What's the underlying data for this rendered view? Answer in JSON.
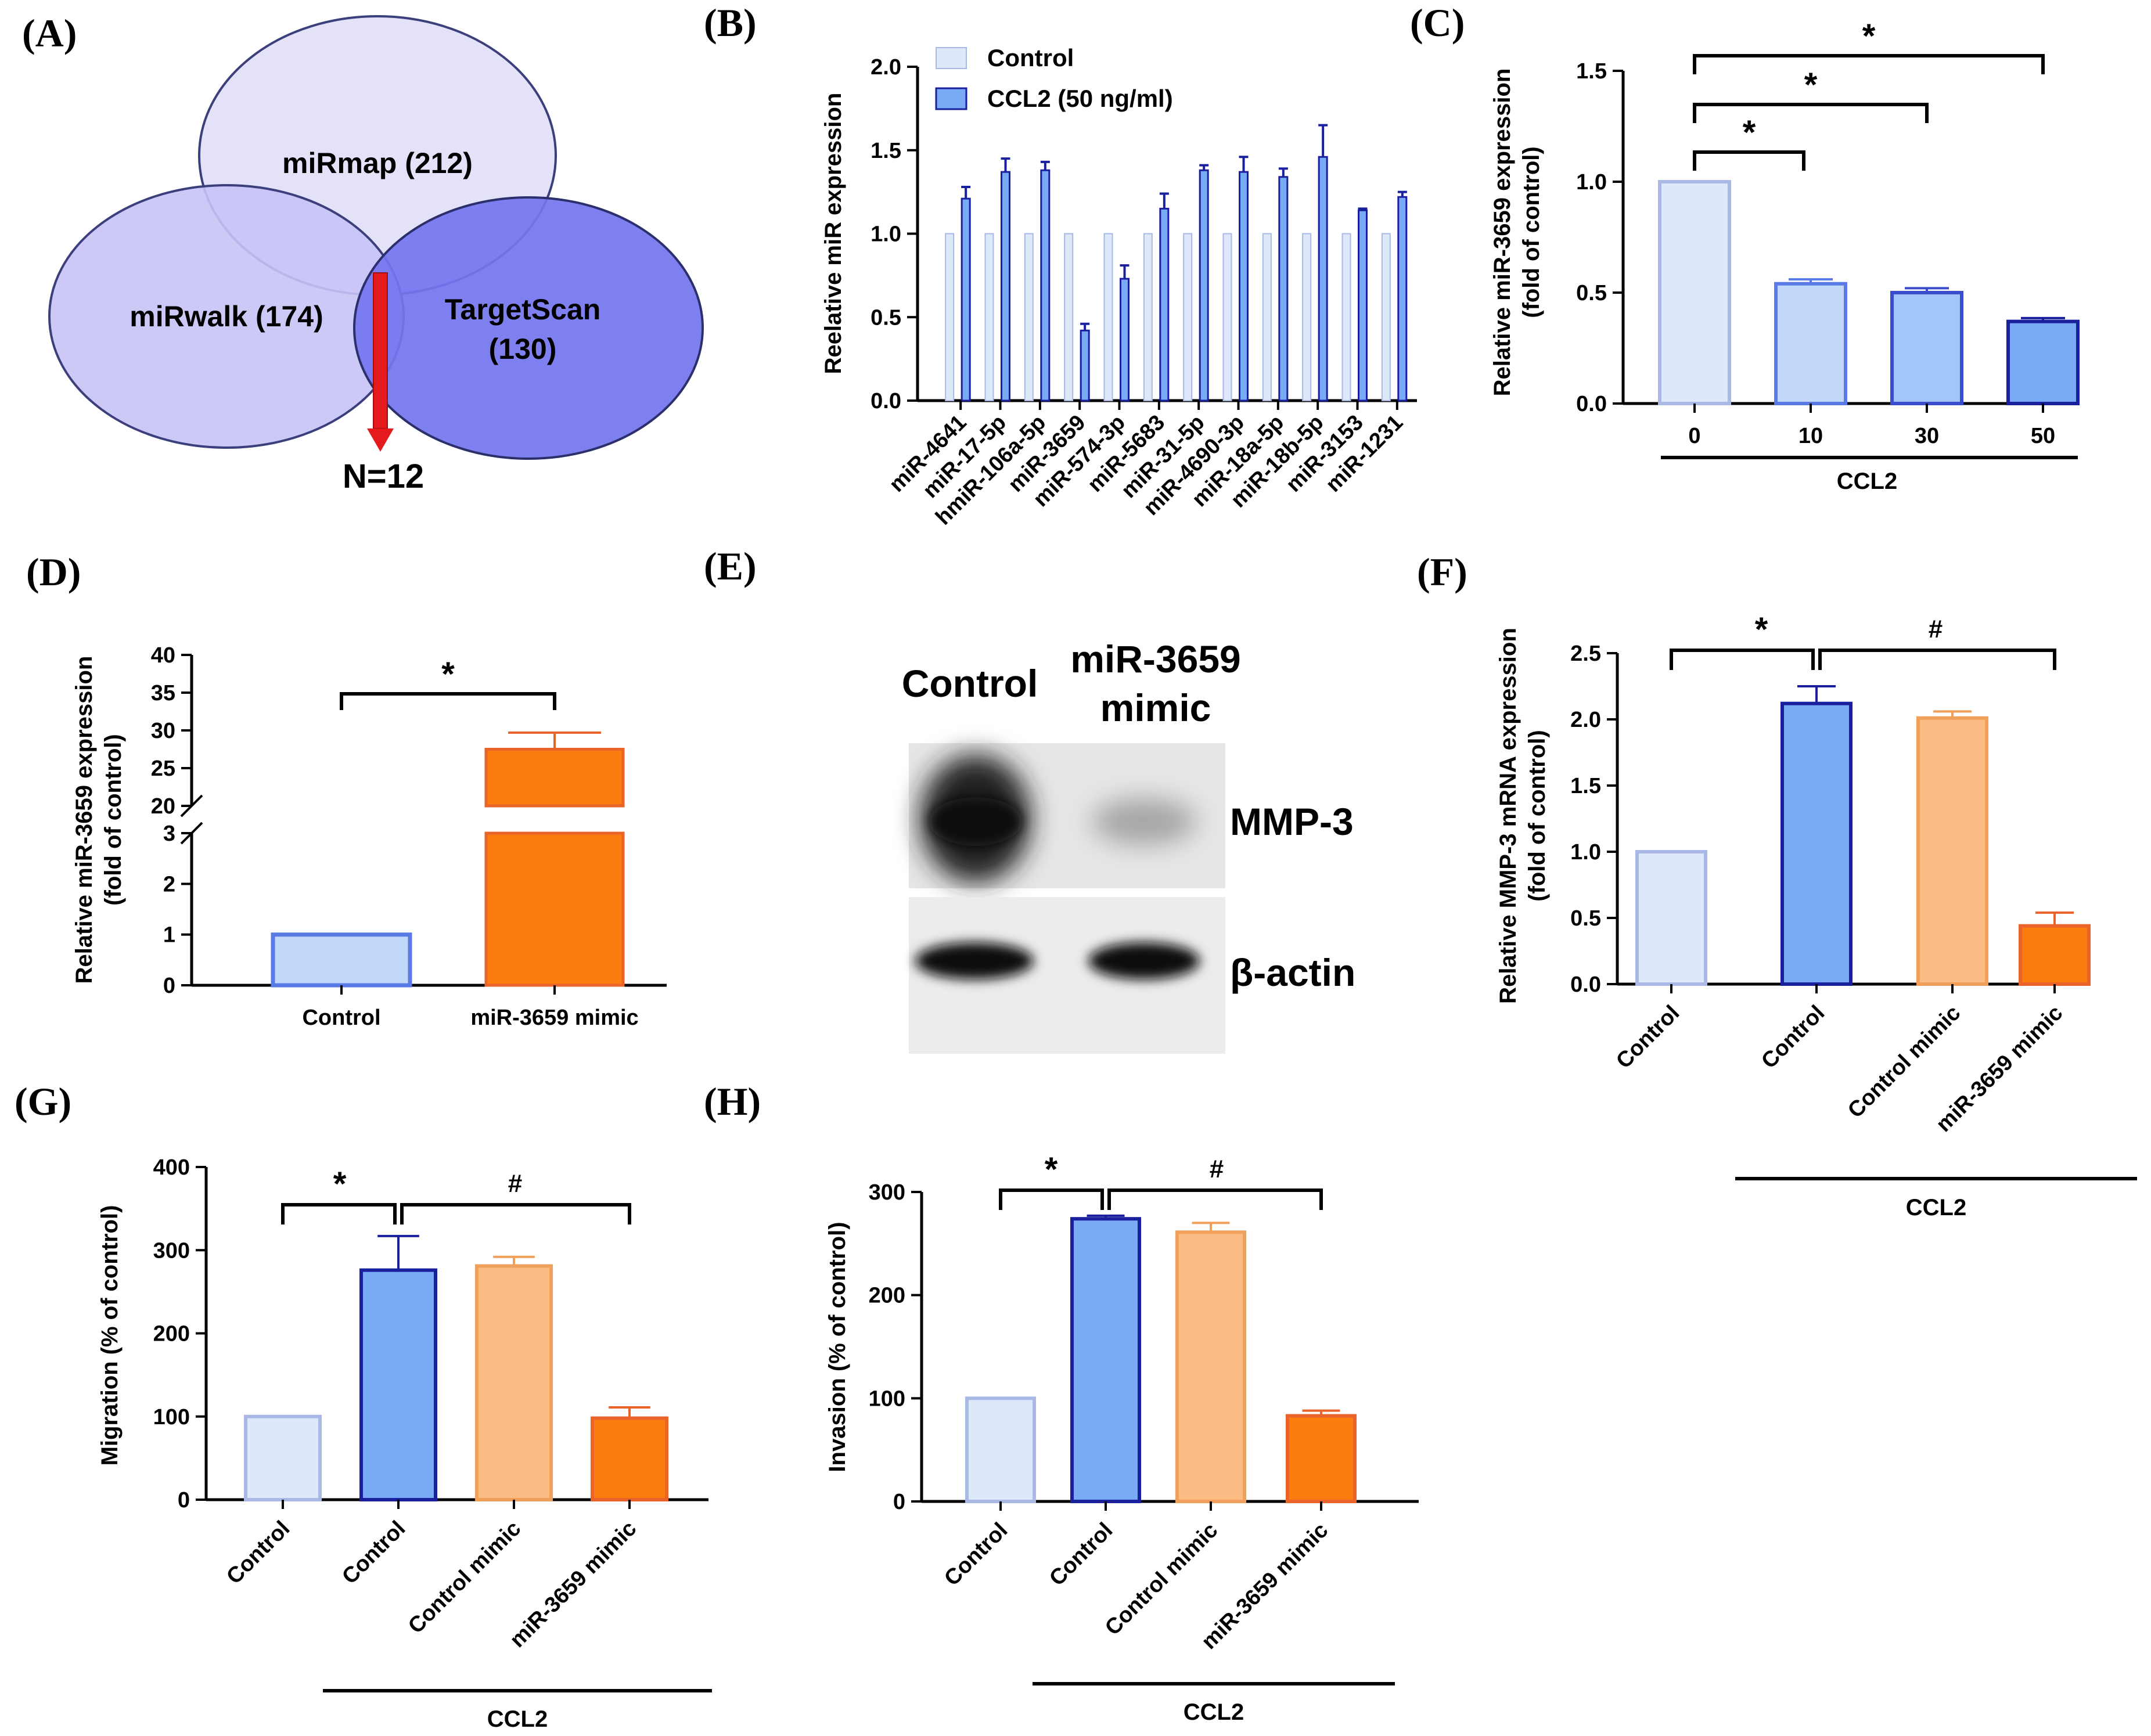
{
  "panel_labels": {
    "A": "(A)",
    "B": "(B)",
    "C": "(C)",
    "D": "(D)",
    "E": "(E)",
    "F": "(F)",
    "G": "(G)",
    "H": "(H)"
  },
  "venn": {
    "sets": [
      {
        "label": "miRmap (212)",
        "color": "#e4e2f8"
      },
      {
        "label": "miRwalk (174)",
        "color": "#c6c3f6"
      },
      {
        "label_line1": "TargetScan",
        "label_line2": "(130)",
        "color": "#7475ee"
      }
    ],
    "result": "N=12",
    "arrow_color": "#e41a1c"
  },
  "colors": {
    "light_fill": "#dde8fa",
    "light_edge": "#aab8e6",
    "blue_fill": "#78aaf5",
    "blue_edge": "#1a1f9e",
    "peach_fill": "#fbbd84",
    "peach_edge": "#f0a05a",
    "orange_fill": "#fb7d10",
    "orange_edge": "#e8642a"
  },
  "chart_data": [
    {
      "id": "B",
      "type": "bar",
      "ylabel": "Reelative miR expression",
      "ylim": [
        0,
        2.0
      ],
      "yticks": [
        "0.0",
        "0.5",
        "1.0",
        "1.5",
        "2.0"
      ],
      "legend_placement": "top-left",
      "categories": [
        "miR-4641",
        "miR-17-5p",
        "hmiR-106a-5p",
        "miR-3659",
        "miR-574-3p",
        "miR-5683",
        "miR-31-5p",
        "miR-4690-3p",
        "miR-18a-5p",
        "miR-18b-5p",
        "miR-3153",
        "miR-1231"
      ],
      "series": [
        {
          "name": "Control",
          "values": [
            1,
            1,
            1,
            1,
            1,
            1,
            1,
            1,
            1,
            1,
            1,
            1
          ],
          "errors": [
            0,
            0,
            0,
            0,
            0,
            0,
            0,
            0,
            0,
            0,
            0,
            0
          ]
        },
        {
          "name": "CCL2 (50 ng/ml)",
          "values": [
            1.21,
            1.37,
            1.38,
            0.42,
            0.73,
            1.15,
            1.38,
            1.37,
            1.34,
            1.46,
            1.14,
            1.22
          ],
          "errors": [
            0.07,
            0.08,
            0.05,
            0.04,
            0.08,
            0.09,
            0.03,
            0.09,
            0.05,
            0.19,
            0.01,
            0.03
          ]
        }
      ]
    },
    {
      "id": "C",
      "type": "bar",
      "ylabel_line1": "Relative miR-3659 expression",
      "ylabel_line2": "(fold of control)",
      "ylim": [
        0,
        1.5
      ],
      "yticks": [
        "0.0",
        "0.5",
        "1.0",
        "1.5"
      ],
      "categories": [
        "0",
        "10",
        "30",
        "50"
      ],
      "group_label": "CCL2",
      "values": [
        1.0,
        0.54,
        0.5,
        0.37
      ],
      "errors": [
        0,
        0.02,
        0.02,
        0.015
      ],
      "significance": [
        "*",
        "*",
        "*"
      ]
    },
    {
      "id": "D",
      "type": "bar",
      "ylabel_line1": "Relative miR-3659 expression",
      "ylabel_line2": "(fold of control)",
      "broken_axis": {
        "lower": [
          0,
          3
        ],
        "upper": [
          20,
          40
        ]
      },
      "yticks_lower": [
        "0",
        "1",
        "2",
        "3"
      ],
      "yticks_upper": [
        "20",
        "25",
        "30",
        "35",
        "40"
      ],
      "categories": [
        "Control",
        "miR-3659 mimic"
      ],
      "values": [
        1.0,
        27.5
      ],
      "errors": [
        0,
        2.2
      ],
      "significance": "*"
    },
    {
      "id": "F",
      "type": "bar",
      "ylabel_line1": "Relative MMP-3 mRNA expression",
      "ylabel_line2": "(fold of control)",
      "ylim": [
        0,
        2.5
      ],
      "yticks": [
        "0.0",
        "0.5",
        "1.0",
        "1.5",
        "2.0",
        "2.5"
      ],
      "categories": [
        "Control",
        "Control",
        "Control mimic",
        "miR-3659 mimic"
      ],
      "group_label": "CCL2",
      "values": [
        1.0,
        2.12,
        2.01,
        0.44
      ],
      "errors": [
        0,
        0.13,
        0.05,
        0.1
      ],
      "significance": [
        "*",
        "#"
      ]
    },
    {
      "id": "G",
      "type": "bar",
      "ylabel": "Migration (% of control)",
      "ylim": [
        0,
        400
      ],
      "yticks": [
        "0",
        "100",
        "200",
        "300",
        "400"
      ],
      "categories": [
        "Control",
        "Control",
        "Control mimic",
        "miR-3659 mimic"
      ],
      "group_label": "CCL2",
      "values": [
        100,
        276,
        281,
        98
      ],
      "errors": [
        0,
        41,
        11,
        13
      ],
      "significance": [
        "*",
        "#"
      ]
    },
    {
      "id": "H",
      "type": "bar",
      "ylabel": "Invasion (% of control)",
      "ylim": [
        0,
        300
      ],
      "yticks": [
        "0",
        "100",
        "200",
        "300"
      ],
      "categories": [
        "Control",
        "Control",
        "Control mimic",
        "miR-3659 mimic"
      ],
      "group_label": "CCL2",
      "values": [
        100,
        274,
        261,
        83
      ],
      "errors": [
        0,
        3,
        9,
        5
      ],
      "significance": [
        "*",
        "#"
      ]
    }
  ],
  "blot": {
    "lane_labels": [
      "Control",
      "miR-3659",
      "mimic"
    ],
    "bands": [
      "MMP-3",
      "β-actin"
    ],
    "mmp3_intensity": [
      0.9,
      0.25
    ],
    "actin_intensity": [
      0.95,
      0.95
    ]
  }
}
